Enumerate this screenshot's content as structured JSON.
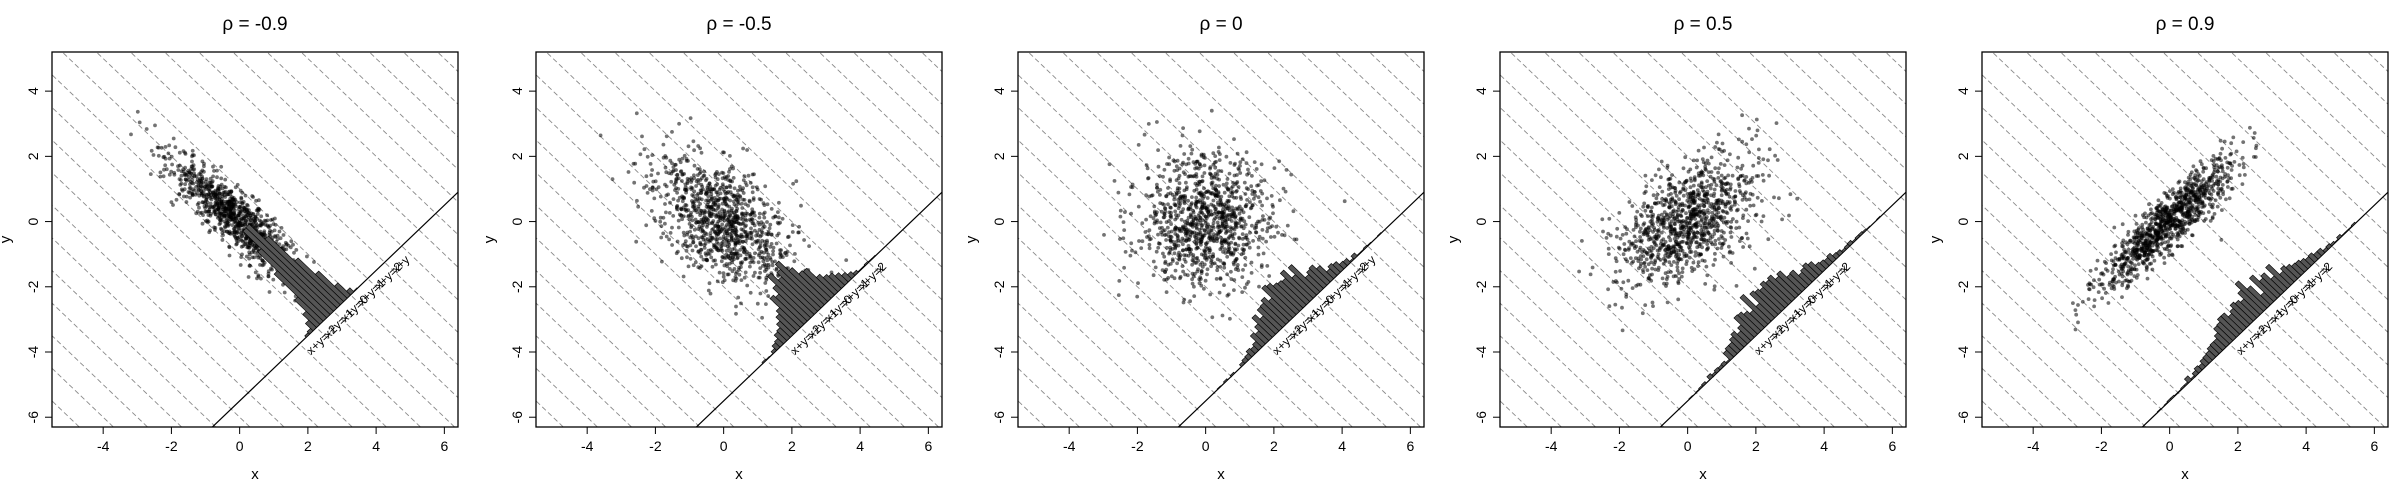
{
  "chart_data": [
    {
      "type": "scatter",
      "title": "ρ = -0.9",
      "rho": -0.9,
      "xlabel": "x",
      "ylabel": "y",
      "xlim": [
        -5.5,
        6.4
      ],
      "ylim": [
        -6.3,
        5.2
      ],
      "xticks": [
        "-4",
        "-2",
        "0",
        "2",
        "4",
        "6"
      ],
      "yticks": [
        "-6",
        "-4",
        "-2",
        "0",
        "2",
        "4"
      ],
      "points": 1000,
      "annotations": [
        "x+y=-2",
        "x+y=-1",
        "x+y=0",
        "x+y=1",
        "x+y=2",
        "x+y"
      ],
      "histogram_of": "x+y",
      "grid": "diagonal dashed lines x+y=c"
    },
    {
      "type": "scatter",
      "title": "ρ = -0.5",
      "rho": -0.5,
      "xlabel": "x",
      "ylabel": "y",
      "xlim": [
        -5.5,
        6.4
      ],
      "ylim": [
        -6.3,
        5.2
      ],
      "xticks": [
        "-4",
        "-2",
        "0",
        "2",
        "4",
        "6"
      ],
      "yticks": [
        "-6",
        "-4",
        "-2",
        "0",
        "2",
        "4"
      ],
      "points": 1000,
      "annotations": [
        "x+y=-2",
        "x+y=-1",
        "x+y=0",
        "x+y=1",
        "x+y=2",
        "x"
      ],
      "histogram_of": "x+y",
      "grid": "diagonal dashed lines x+y=c"
    },
    {
      "type": "scatter",
      "title": "ρ = 0",
      "rho": 0,
      "xlabel": "x",
      "ylabel": "y",
      "xlim": [
        -5.5,
        6.4
      ],
      "ylim": [
        -6.3,
        5.2
      ],
      "xticks": [
        "-4",
        "-2",
        "0",
        "2",
        "4",
        "6"
      ],
      "yticks": [
        "-6",
        "-4",
        "-2",
        "0",
        "2",
        "4"
      ],
      "points": 1000,
      "annotations": [
        "x+y=-2",
        "x+y=-1",
        "x+y=0",
        "x+y=1",
        "x+y=2",
        "x+y"
      ],
      "histogram_of": "x+y",
      "grid": "diagonal dashed lines x+y=c"
    },
    {
      "type": "scatter",
      "title": "ρ = 0.5",
      "rho": 0.5,
      "xlabel": "x",
      "ylabel": "y",
      "xlim": [
        -5.5,
        6.4
      ],
      "ylim": [
        -6.3,
        5.2
      ],
      "xticks": [
        "-4",
        "-2",
        "0",
        "2",
        "4",
        "6"
      ],
      "yticks": [
        "-6",
        "-4",
        "-2",
        "0",
        "2",
        "4"
      ],
      "points": 1000,
      "annotations": [
        "x+y=-2",
        "x+y=-1",
        "x+y=0",
        "x+y=1",
        "x+y=2",
        "x"
      ],
      "histogram_of": "x+y",
      "grid": "diagonal dashed lines x+y=c"
    },
    {
      "type": "scatter",
      "title": "ρ = 0.9",
      "rho": 0.9,
      "xlabel": "x",
      "ylabel": "y",
      "xlim": [
        -5.5,
        6.4
      ],
      "ylim": [
        -6.3,
        5.2
      ],
      "xticks": [
        "-4",
        "-2",
        "0",
        "2",
        "4",
        "6"
      ],
      "yticks": [
        "-6",
        "-4",
        "-2",
        "0",
        "2",
        "4"
      ],
      "points": 1000,
      "annotations": [
        "x+y=-2",
        "x+y=-1",
        "x+y=0",
        "x+y=1",
        "x+y=2",
        "x"
      ],
      "histogram_of": "x+y",
      "grid": "diagonal dashed lines x+y=c"
    }
  ]
}
